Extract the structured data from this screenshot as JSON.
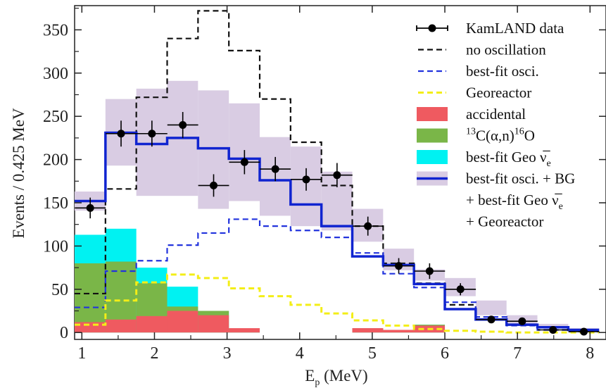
{
  "chart_data": {
    "type": "histogram",
    "xlabel": "E",
    "xlabel_sub": "p",
    "xlabel_unit": " (MeV)",
    "ylabel": "Events / 0.425 MeV",
    "xlim": [
      0.9,
      8.22
    ],
    "ylim": [
      -8,
      378
    ],
    "xticks": [
      1,
      2,
      3,
      4,
      5,
      6,
      7,
      8
    ],
    "yticks": [
      0,
      50,
      100,
      150,
      200,
      250,
      300,
      350
    ],
    "bin_edges": [
      0.9,
      1.325,
      1.75,
      2.175,
      2.6,
      3.025,
      3.45,
      3.875,
      4.3,
      4.725,
      5.15,
      5.575,
      6.0,
      6.425,
      6.85,
      7.275,
      7.7,
      8.125
    ],
    "bands": {
      "accidental": [
        12,
        15,
        19,
        25,
        20,
        5,
        0,
        0,
        0,
        5,
        3,
        8,
        0,
        0,
        0,
        0,
        0
      ],
      "c13": [
        80,
        82,
        57,
        30,
        25,
        4,
        0,
        0,
        0,
        5,
        3,
        9,
        0,
        0,
        0,
        0,
        0
      ],
      "geo": [
        113,
        120,
        75,
        53,
        25,
        4,
        0,
        0,
        0,
        5,
        3,
        9,
        0,
        0,
        0,
        0,
        0
      ],
      "band_lo": [
        141,
        193,
        158,
        158,
        143,
        152,
        135,
        123,
        118,
        105,
        72,
        60,
        42,
        20,
        10,
        5,
        2
      ],
      "band_hi": [
        163,
        270,
        282,
        291,
        280,
        265,
        226,
        215,
        186,
        143,
        97,
        73,
        63,
        37,
        20,
        10,
        5
      ]
    },
    "series": [
      {
        "name": "no oscillation",
        "values": [
          45,
          166,
          272,
          340,
          372,
          326,
          270,
          220,
          170,
          123,
          80,
          57,
          32,
          18,
          8,
          3,
          1
        ]
      },
      {
        "name": "best-fit osci.",
        "values": [
          29,
          71,
          83,
          101,
          115,
          131,
          123,
          118,
          110,
          92,
          68,
          52,
          35,
          18,
          8,
          3,
          1
        ]
      },
      {
        "name": "Georeactor",
        "values": [
          9,
          37,
          58,
          67,
          63,
          51,
          42,
          32,
          22,
          14,
          8,
          4,
          2,
          1,
          0,
          0,
          0
        ]
      },
      {
        "name": "best-fit osci. + BG + best-fit Geo ν̅e + Georeactor",
        "values": [
          152,
          231,
          218,
          225,
          213,
          201,
          176,
          148,
          123,
          88,
          78,
          56,
          27,
          15,
          9,
          6,
          3
        ]
      }
    ],
    "data_points": {
      "x": [
        1.115,
        1.54,
        1.965,
        2.39,
        2.815,
        3.24,
        3.665,
        4.09,
        4.515,
        4.94,
        5.365,
        5.79,
        6.215,
        6.64,
        7.065,
        7.49,
        7.915
      ],
      "y": [
        144,
        230,
        230,
        240,
        170,
        197,
        189,
        177,
        182,
        123,
        77,
        71,
        50,
        15,
        13,
        3,
        1
      ],
      "yerr": [
        12,
        15,
        15,
        15,
        13,
        14,
        14,
        13,
        14,
        11,
        9,
        9,
        7,
        4,
        3,
        1,
        1
      ]
    },
    "legend": [
      {
        "label": "KamLAND data",
        "style": "errorbar"
      },
      {
        "label": "no oscillation",
        "style": "dash-black"
      },
      {
        "label": "best-fit osci.",
        "style": "dash-blue"
      },
      {
        "label": "Georeactor",
        "style": "dash-yellow"
      },
      {
        "label": "accidental",
        "style": "fill-red"
      },
      {
        "label": "C(α,n) O",
        "sup1": "13",
        "sup2": "16",
        "pre": "",
        "mid": "C(α,n)",
        "post": "O",
        "style": "fill-green"
      },
      {
        "label": "best-fit Geo ν̅e",
        "pre": "best-fit Geo ",
        "nu": "ν̅",
        "sub": "e",
        "style": "fill-cyan"
      },
      {
        "label": "best-fit osci. + BG",
        "style": "solid-blue-fill-violet"
      },
      {
        "label": "+ best-fit Geo ν̅e",
        "pre": "+ best-fit Geo ",
        "nu": "ν̅",
        "sub": "e",
        "style": "none"
      },
      {
        "label": "+ Georeactor",
        "style": "none"
      }
    ],
    "colors": {
      "band": "#d9cce3",
      "geo": "#00f2f2",
      "c13": "#7ab648",
      "accidental": "#ef5a60",
      "noosc": "#111111",
      "bestfit": "#2233dd",
      "georeactor": "#f3ee17",
      "total": "#1024d0",
      "data": "#000000"
    }
  }
}
